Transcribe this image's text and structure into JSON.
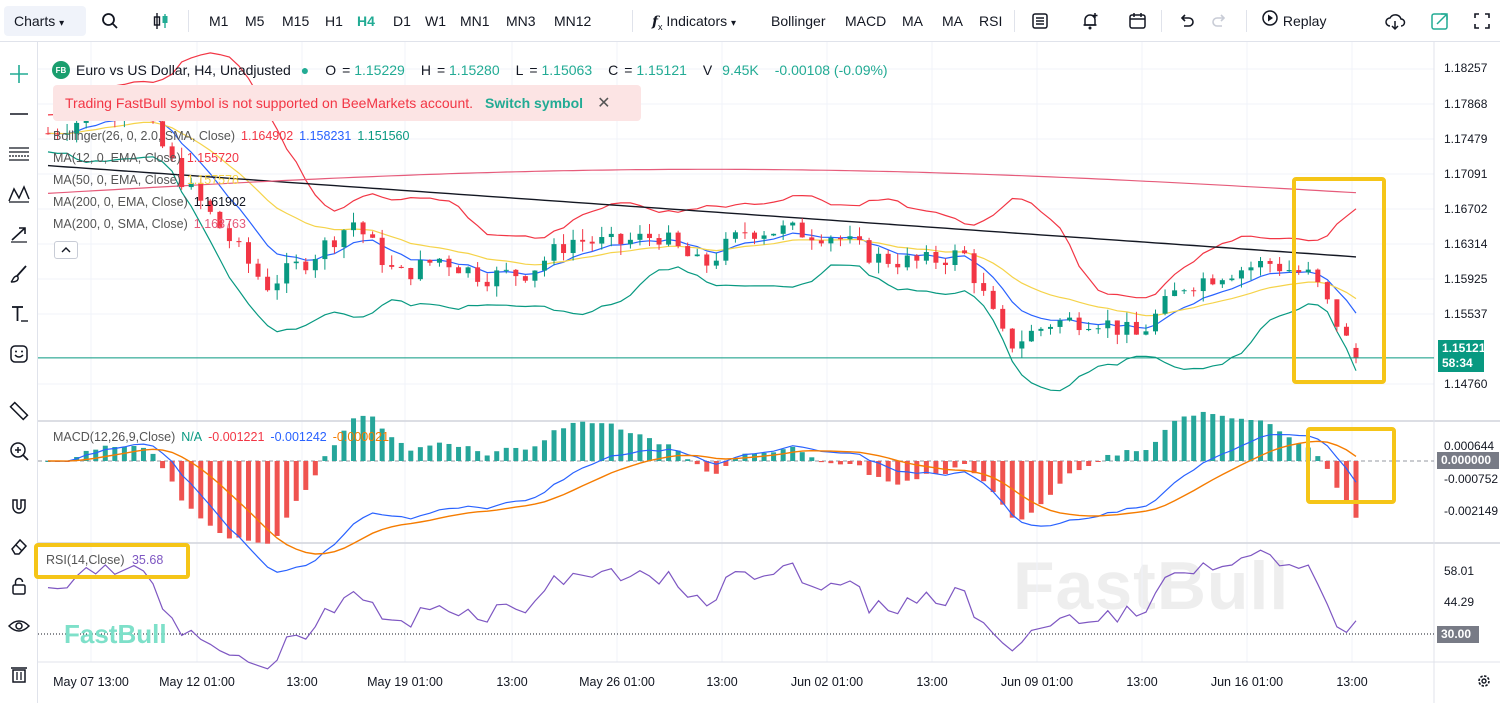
{
  "toolbar": {
    "charts_label": "Charts",
    "timeframes": [
      "M1",
      "M5",
      "M15",
      "H1",
      "H4",
      "D1",
      "W1",
      "MN1",
      "MN3",
      "MN12"
    ],
    "active_timeframe": "H4",
    "indicators_label": "Indicators",
    "quick_indicators": [
      "Bollinger",
      "MACD",
      "MA",
      "MA",
      "RSI"
    ],
    "replay_label": "Replay",
    "icons": [
      "search-icon",
      "candle-type-icon",
      "function-icon",
      "template-icon",
      "alert-icon",
      "calendar-icon",
      "undo-icon",
      "redo-icon",
      "replay-icon",
      "cloud-icon",
      "share-icon",
      "fullscreen-icon"
    ]
  },
  "left_tools": [
    "crosshair-icon",
    "horizontal-line-icon",
    "fib-icon",
    "pattern-icon",
    "arrow-icon",
    "brush-icon",
    "text-icon",
    "emoji-icon",
    "ruler-icon",
    "zoom-icon",
    "magnet-icon",
    "eraser-icon",
    "lock-icon",
    "eye-icon",
    "trash-icon"
  ],
  "symbol": {
    "badge": "FB",
    "title": "Euro vs US Dollar, H4, Unadjusted",
    "open_label": "O",
    "open": "1.15229",
    "high_label": "H",
    "high": "1.15280",
    "low_label": "L",
    "low": "1.15063",
    "close_label": "C",
    "close": "1.15121",
    "volume_label": "V",
    "volume": "9.45K",
    "change": "-0.00108 (-0.09%)"
  },
  "warning": {
    "text": "Trading FastBull symbol is not supported on BeeMarkets account.",
    "link": "Switch symbol"
  },
  "indicator_legends": [
    {
      "label": "Bollinger(26, 0, 2.0, SMA, Close)",
      "values": [
        "1.164902",
        "1.158231",
        "1.151560"
      ],
      "colors": [
        "#f23645",
        "#2962ff",
        "#089981"
      ]
    },
    {
      "label": "MA(12, 0, EMA, Close)",
      "values": [
        "1.155720"
      ],
      "colors": [
        "#f23645"
      ]
    },
    {
      "label": "MA(50, 0, EMA, Close)",
      "values": [
        "1.157578"
      ],
      "colors": [
        "#f5d34a"
      ]
    },
    {
      "label": "MA(200, 0, EMA, Close)",
      "values": [
        "1.161902"
      ],
      "colors": [
        "#131722"
      ]
    },
    {
      "label": "MA(200, 0, SMA, Close)",
      "values": [
        "1.163763"
      ],
      "colors": [
        "#e65c7b"
      ]
    }
  ],
  "macd_legend": {
    "label": "MACD(12,26,9,Close)",
    "values": [
      "N/A",
      "-0.001221",
      "-0.001242",
      "-0.000021"
    ],
    "colors": [
      "#089981",
      "#f23645",
      "#2962ff",
      "#f57c00"
    ]
  },
  "rsi_legend": {
    "label": "RSI(14,Close)",
    "value": "35.68"
  },
  "price_axis": {
    "labels": [
      "1.18257",
      "1.17868",
      "1.17479",
      "1.17091",
      "1.16702",
      "1.16314",
      "1.15925",
      "1.15537",
      "1.14760"
    ],
    "current_price": "1.15121",
    "countdown": "58:34"
  },
  "macd_axis": {
    "labels": [
      "0.000644",
      "-0.000752",
      "-0.002149"
    ],
    "zero": "0.000000"
  },
  "rsi_axis": {
    "labels": [
      "58.01",
      "44.29"
    ],
    "level": "30.00"
  },
  "time_axis": [
    "May 07 13:00",
    "May 12 01:00",
    "13:00",
    "May 19 01:00",
    "13:00",
    "May 26 01:00",
    "13:00",
    "Jun 02 01:00",
    "13:00",
    "Jun 09 01:00",
    "13:00",
    "Jun 16 01:00",
    "13:00"
  ],
  "watermark": "FastBull",
  "brand": "FastBull",
  "colors": {
    "up": "#089981",
    "down": "#f23645",
    "highlight": "#f5c518",
    "rsi": "#7e57c2",
    "accent": "#22ab94"
  },
  "chart_data": {
    "type": "candlestick",
    "symbol": "EURUSD",
    "timeframe": "H4",
    "ylim": [
      1.1445,
      1.1845
    ],
    "last": {
      "open": 1.15229,
      "high": 1.1528,
      "low": 1.15063,
      "close": 1.15121
    },
    "close_path": [
      {
        "x": "May 07 13:00",
        "y": 1.1755
      },
      {
        "x": "May 09",
        "y": 1.1775
      },
      {
        "x": "May 12 01:00",
        "y": 1.179
      },
      {
        "x": "May 12 13:00",
        "y": 1.171
      },
      {
        "x": "May 14",
        "y": 1.165
      },
      {
        "x": "May 15",
        "y": 1.159
      },
      {
        "x": "May 16",
        "y": 1.162
      },
      {
        "x": "May 19 01:00",
        "y": 1.166
      },
      {
        "x": "May 20",
        "y": 1.16
      },
      {
        "x": "May 21",
        "y": 1.162
      },
      {
        "x": "May 22",
        "y": 1.16
      },
      {
        "x": "May 23",
        "y": 1.1605
      },
      {
        "x": "May 26 01:00",
        "y": 1.164
      },
      {
        "x": "May 27",
        "y": 1.1635
      },
      {
        "x": "May 28",
        "y": 1.1645
      },
      {
        "x": "May 29",
        "y": 1.161
      },
      {
        "x": "May 30",
        "y": 1.165
      },
      {
        "x": "Jun 02 01:00",
        "y": 1.165
      },
      {
        "x": "Jun 03",
        "y": 1.1645
      },
      {
        "x": "Jun 04",
        "y": 1.162
      },
      {
        "x": "Jun 05",
        "y": 1.1615
      },
      {
        "x": "Jun 06",
        "y": 1.1625
      },
      {
        "x": "Jun 09 01:00",
        "y": 1.1525
      },
      {
        "x": "Jun 10",
        "y": 1.155
      },
      {
        "x": "Jun 11",
        "y": 1.1555
      },
      {
        "x": "Jun 12",
        "y": 1.1535
      },
      {
        "x": "Jun 13",
        "y": 1.159
      },
      {
        "x": "Jun 16 01:00",
        "y": 1.1605
      },
      {
        "x": "Jun 17",
        "y": 1.1615
      },
      {
        "x": "Jun 18",
        "y": 1.16
      },
      {
        "x": "Jun 19",
        "y": 1.1512
      }
    ],
    "macd": {
      "macd": -0.001221,
      "signal": -0.001242,
      "histogram": -2.1e-05
    },
    "rsi": {
      "period": 14,
      "last": 35.68,
      "levels": [
        30,
        58.01,
        44.29
      ]
    },
    "moving_averages": {
      "ma12_ema": 1.15572,
      "ma50_ema": 1.157578,
      "ma200_ema": 1.161902,
      "ma200_sma": 1.163763
    },
    "bollinger": {
      "upper": 1.164902,
      "middle": 1.158231,
      "lower": 1.15156
    }
  }
}
